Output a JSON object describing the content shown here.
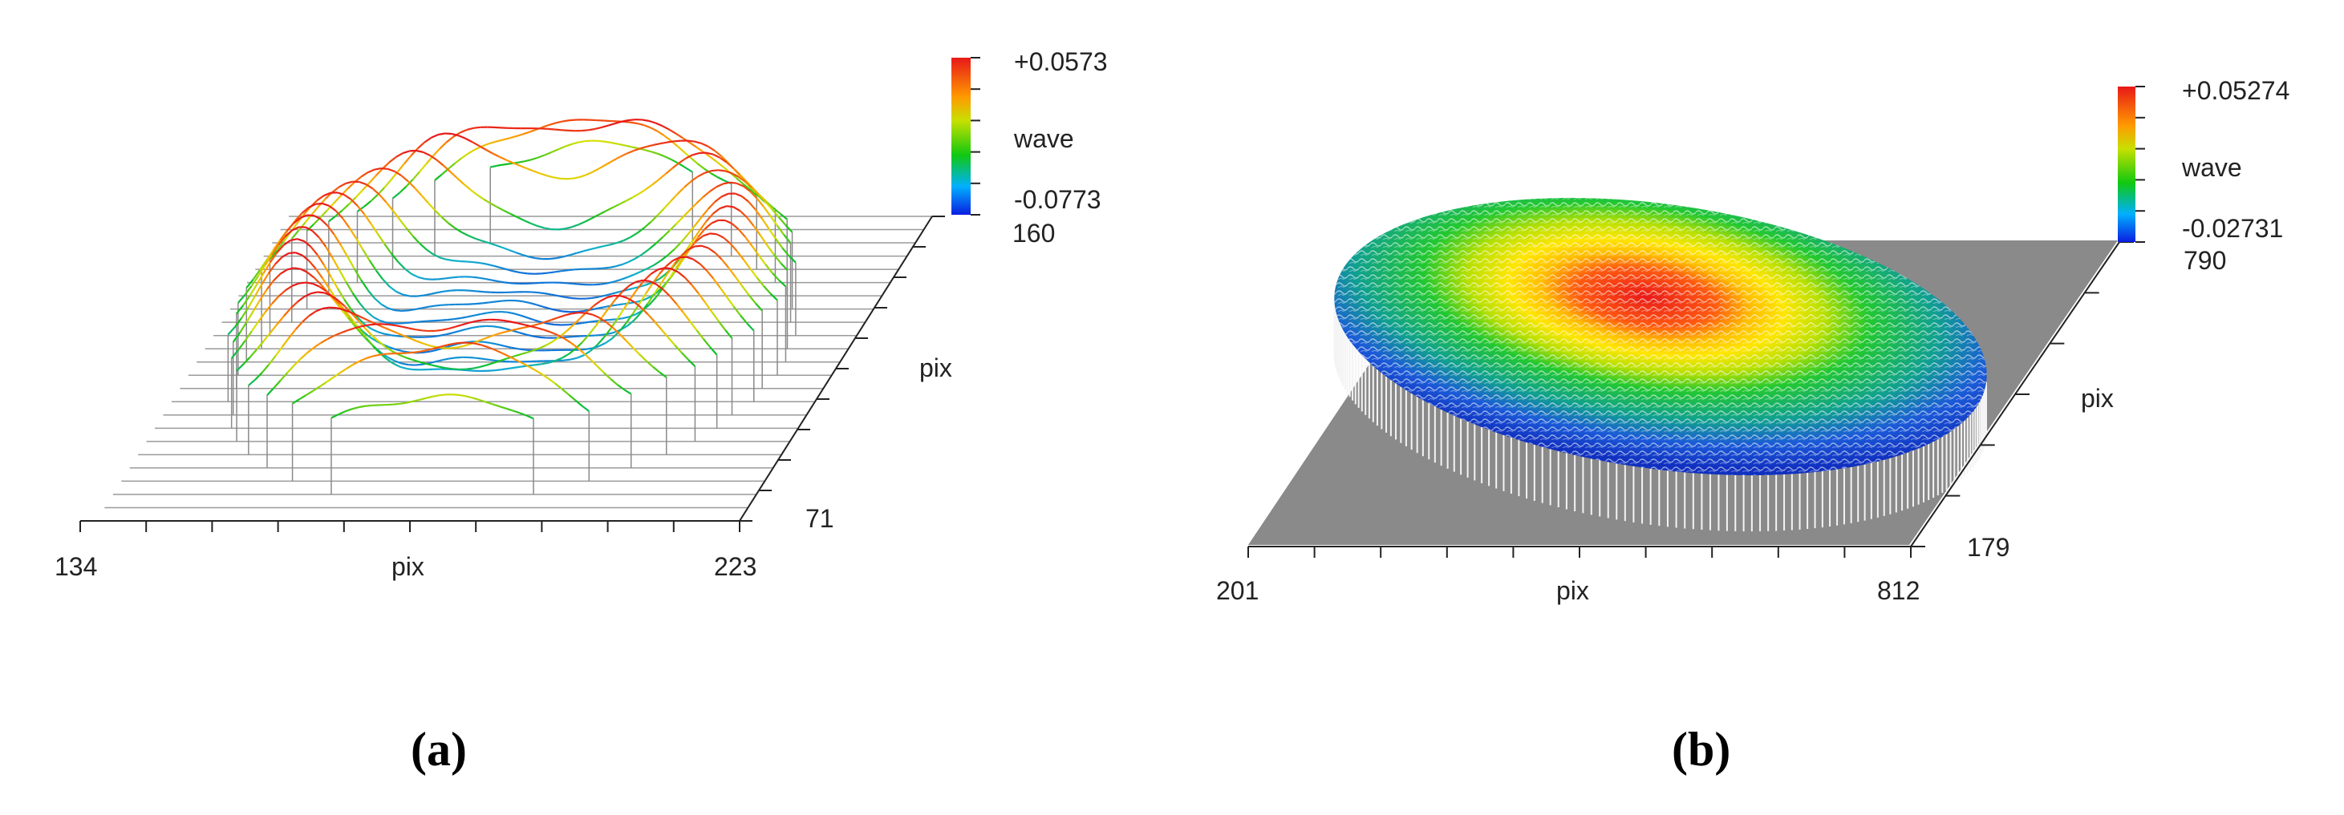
{
  "chart_data": [
    {
      "panel": "(a)",
      "type": "surface3d",
      "xlabel": "pix",
      "ylabel": "pix",
      "x_range": [
        134,
        223
      ],
      "y_range": [
        71,
        160
      ],
      "x_tick_labels": [
        "134",
        "223"
      ],
      "y_tick_labels": [
        "71",
        "160"
      ],
      "colorbar": {
        "label": "wave",
        "max_label": "+0.0573",
        "min_label": "-0.0773",
        "max": 0.0573,
        "min": -0.0773
      },
      "style": "wire-lines",
      "description_shape": "annular ring with central hole"
    },
    {
      "panel": "(b)",
      "type": "surface3d",
      "xlabel": "pix",
      "ylabel": "pix",
      "x_range": [
        201,
        812
      ],
      "y_range": [
        179,
        790
      ],
      "x_tick_labels": [
        "201",
        "812"
      ],
      "y_tick_labels": [
        "179",
        "790"
      ],
      "colorbar": {
        "label": "wave",
        "max_label": "+0.05274",
        "min_label": "-0.02731",
        "max": 0.05274,
        "min": -0.02731
      },
      "style": "dense-mesh",
      "description_shape": "elliptical disc with central peak"
    }
  ],
  "colors": {
    "red": "#e8201a",
    "yellow": "#f5d400",
    "green": "#19c419",
    "blue": "#1040d8",
    "base": "#8a8a8a"
  }
}
